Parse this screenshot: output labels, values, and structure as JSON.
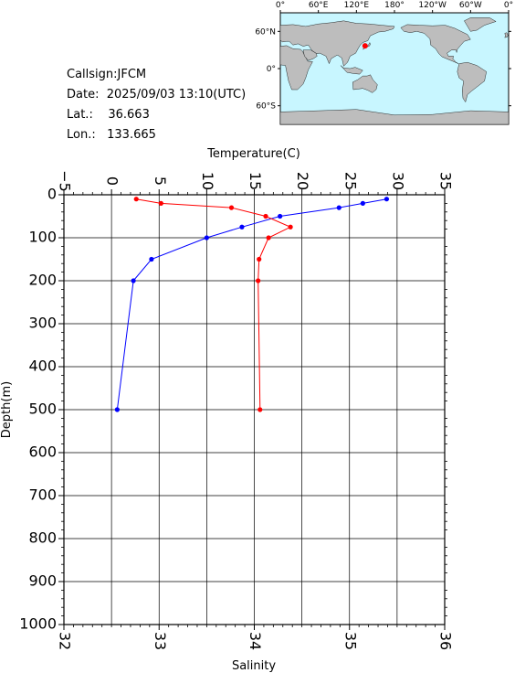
{
  "info": {
    "callsign": "Callsign:JFCM",
    "date_label": "Date:",
    "date_value": "2025/09/03 13:10(UTC)",
    "lat_label": "Lat.:",
    "lat_value": "36.663",
    "lon_label": "Lon.:",
    "lon_value": "133.665"
  },
  "map": {
    "lon_labels": [
      "0°",
      "60°E",
      "120°E",
      "180°",
      "120°W",
      "60°W",
      "0°"
    ],
    "lat_labels": [
      "60°N",
      "0°",
      "60°S"
    ],
    "ocean_color": "#c8f6ff",
    "land_color": "#bdbdbd",
    "marker_color": "#ff0000",
    "marker": {
      "lon": 133.665,
      "lat": 36.663
    }
  },
  "chart_data": {
    "type": "line",
    "top_axis_label": "Temperature(C)",
    "bottom_axis_label": "Salinity",
    "y_axis_label": "Depth(m)",
    "temperature_range": [
      -5,
      35
    ],
    "temperature_ticks": [
      -5,
      0,
      5,
      10,
      15,
      20,
      25,
      30,
      35
    ],
    "salinity_range": [
      32,
      36
    ],
    "salinity_ticks": [
      32,
      33,
      34,
      35,
      36
    ],
    "depth_range": [
      0,
      1000
    ],
    "depth_ticks": [
      0,
      100,
      200,
      300,
      400,
      500,
      600,
      700,
      800,
      900,
      1000
    ],
    "grid": true,
    "series": [
      {
        "variable": "temperature",
        "color": "#0000ff",
        "marker": "circle",
        "points": [
          {
            "depth": 10,
            "value": 28.9
          },
          {
            "depth": 20,
            "value": 26.4
          },
          {
            "depth": 30,
            "value": 23.9
          },
          {
            "depth": 50,
            "value": 17.7
          },
          {
            "depth": 75,
            "value": 13.7
          },
          {
            "depth": 100,
            "value": 10.0
          },
          {
            "depth": 150,
            "value": 4.2
          },
          {
            "depth": 200,
            "value": 2.3
          },
          {
            "depth": 500,
            "value": 0.6
          }
        ]
      },
      {
        "variable": "salinity",
        "color": "#ff0000",
        "marker": "circle",
        "points": [
          {
            "depth": 10,
            "value": 32.76
          },
          {
            "depth": 20,
            "value": 33.02
          },
          {
            "depth": 30,
            "value": 33.76
          },
          {
            "depth": 50,
            "value": 34.12
          },
          {
            "depth": 75,
            "value": 34.38
          },
          {
            "depth": 100,
            "value": 34.15
          },
          {
            "depth": 150,
            "value": 34.05
          },
          {
            "depth": 200,
            "value": 34.04
          },
          {
            "depth": 500,
            "value": 34.06
          }
        ]
      }
    ]
  }
}
